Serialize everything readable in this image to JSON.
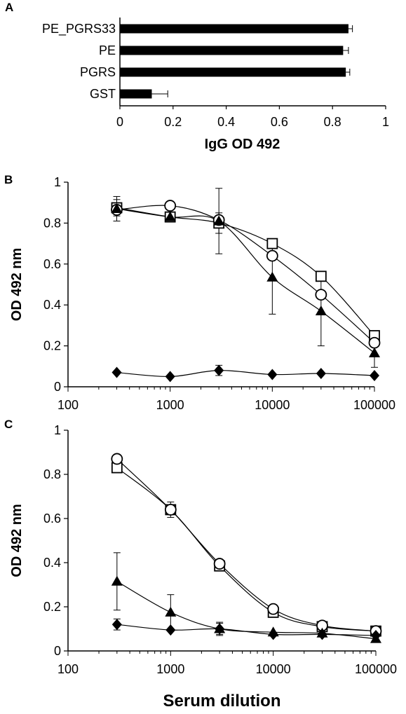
{
  "panels": [
    "A",
    "B",
    "C"
  ],
  "chart_data": [
    {
      "type": "bar",
      "orientation": "horizontal",
      "categories": [
        "PE_PGRS33",
        "PE",
        "PGRS",
        "GST"
      ],
      "values": [
        0.86,
        0.84,
        0.85,
        0.12
      ],
      "errors": [
        0.015,
        0.02,
        0.015,
        0.06
      ],
      "xlabel": "IgG  OD 492",
      "ylabel": "",
      "xlim": [
        0,
        1
      ],
      "xticks": [
        "0",
        "0.2",
        "0.4",
        "0.6",
        "0.8",
        "1"
      ],
      "grid": false,
      "colors": {
        "bar": "#000000"
      }
    },
    {
      "type": "line",
      "xscale": "log",
      "xlim": [
        100,
        100000
      ],
      "ylim": [
        0,
        1
      ],
      "xticks": [
        "100",
        "1000",
        "10000",
        "100000"
      ],
      "yticks": [
        "0",
        "0.2",
        "0.4",
        "0.6",
        "0.8",
        "1"
      ],
      "ylabel": "OD 492 nm",
      "xlabel": "",
      "x": [
        300,
        1000,
        3000,
        10000,
        30000,
        100000
      ],
      "series": [
        {
          "marker": "open-square",
          "values": [
            0.875,
            0.83,
            0.8,
            0.7,
            0.54,
            0.25
          ],
          "errors": [
            0.04,
            0.0,
            0.05,
            0.0,
            0.0,
            0.0
          ]
        },
        {
          "marker": "open-circle",
          "values": [
            0.865,
            0.885,
            0.815,
            0.64,
            0.45,
            0.215
          ],
          "errors": [
            0.0,
            0.0,
            0.0,
            0.0,
            0.0,
            0.0
          ]
        },
        {
          "marker": "filled-triangle",
          "values": [
            0.87,
            0.83,
            0.81,
            0.535,
            0.37,
            0.165
          ],
          "errors": [
            0.06,
            0.0,
            0.16,
            0.18,
            0.17,
            0.07
          ]
        },
        {
          "marker": "filled-diamond",
          "values": [
            0.07,
            0.05,
            0.08,
            0.06,
            0.065,
            0.055
          ],
          "errors": [
            0.0,
            0.0,
            0.025,
            0.0,
            0.0,
            0.0
          ]
        }
      ],
      "grid": false
    },
    {
      "type": "line",
      "xscale": "log",
      "xlim": [
        100,
        100000
      ],
      "ylim": [
        0,
        1
      ],
      "xticks": [
        "100",
        "1000",
        "10000",
        "100000"
      ],
      "yticks": [
        "0",
        "0.2",
        "0.4",
        "0.6",
        "0.8",
        "1"
      ],
      "ylabel": "OD 492 nm",
      "xlabel": "Serum dilution",
      "x": [
        300,
        1000,
        3000,
        10000,
        30000,
        100000
      ],
      "series": [
        {
          "marker": "open-square",
          "values": [
            0.83,
            0.64,
            0.385,
            0.175,
            0.11,
            0.09
          ],
          "errors": [
            0.0,
            0.035,
            0.0,
            0.0,
            0.0,
            0.0
          ]
        },
        {
          "marker": "open-circle",
          "values": [
            0.87,
            0.64,
            0.395,
            0.19,
            0.115,
            0.09
          ],
          "errors": [
            0.0,
            0.0,
            0.0,
            0.0,
            0.0,
            0.0
          ]
        },
        {
          "marker": "filled-triangle",
          "values": [
            0.315,
            0.175,
            0.1,
            0.085,
            0.08,
            0.055
          ],
          "errors": [
            0.13,
            0.08,
            0.03,
            0.0,
            0.0,
            0.0
          ]
        },
        {
          "marker": "filled-diamond",
          "values": [
            0.12,
            0.095,
            0.1,
            0.075,
            0.075,
            0.07
          ],
          "errors": [
            0.025,
            0.0,
            0.025,
            0.0,
            0.0,
            0.0
          ]
        }
      ],
      "grid": false
    }
  ]
}
